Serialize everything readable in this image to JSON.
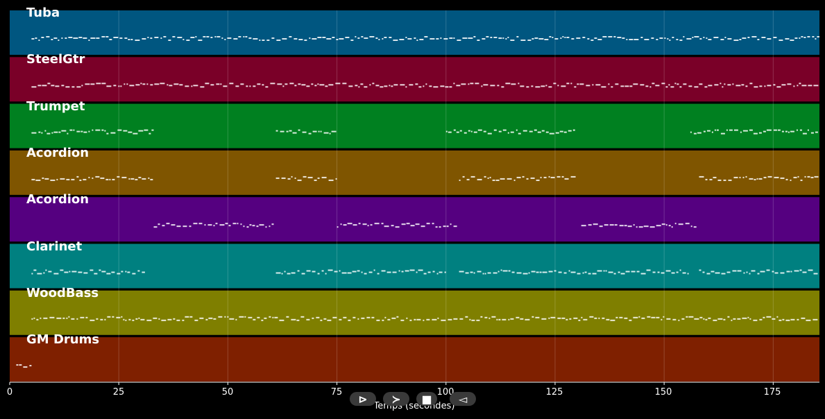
{
  "tracks": [
    {
      "name": "Tuba",
      "color": "#005680"
    },
    {
      "name": "SteelGtr",
      "color": "#7a0028"
    },
    {
      "name": "Trumpet",
      "color": "#008020"
    },
    {
      "name": "Acordion",
      "color": "#7f5500"
    },
    {
      "name": "Acordion",
      "color": "#550080"
    },
    {
      "name": "Clarinet",
      "color": "#008080"
    },
    {
      "name": "WoodBass",
      "color": "#7f7f00"
    },
    {
      "name": "GM Drums",
      "color": "#7f2000"
    }
  ],
  "x_axis": {
    "ticks": [
      "0",
      "25",
      "50",
      "75",
      "100",
      "125",
      "150",
      "175"
    ],
    "max_seconds": 185.6,
    "label": "Temps (secondes)"
  },
  "note_segments": [
    [
      [
        5,
        185.6
      ]
    ],
    [
      [
        5,
        185.6
      ]
    ],
    [
      [
        5,
        33
      ],
      [
        61,
        75
      ],
      [
        100,
        130
      ],
      [
        156,
        185.6
      ]
    ],
    [
      [
        5,
        33
      ],
      [
        61,
        75
      ],
      [
        103,
        130
      ],
      [
        158,
        185.6
      ]
    ],
    [
      [
        33,
        61
      ],
      [
        75,
        103
      ],
      [
        131,
        158
      ]
    ],
    [
      [
        5,
        31
      ],
      [
        61,
        100
      ],
      [
        103,
        156
      ],
      [
        158,
        185.6
      ]
    ],
    [
      [
        5,
        185.6
      ]
    ],
    [
      [
        1.5,
        5
      ]
    ]
  ],
  "controls": {
    "play": "⊳",
    "forward": "≻",
    "stop": "■",
    "back": "◅"
  }
}
